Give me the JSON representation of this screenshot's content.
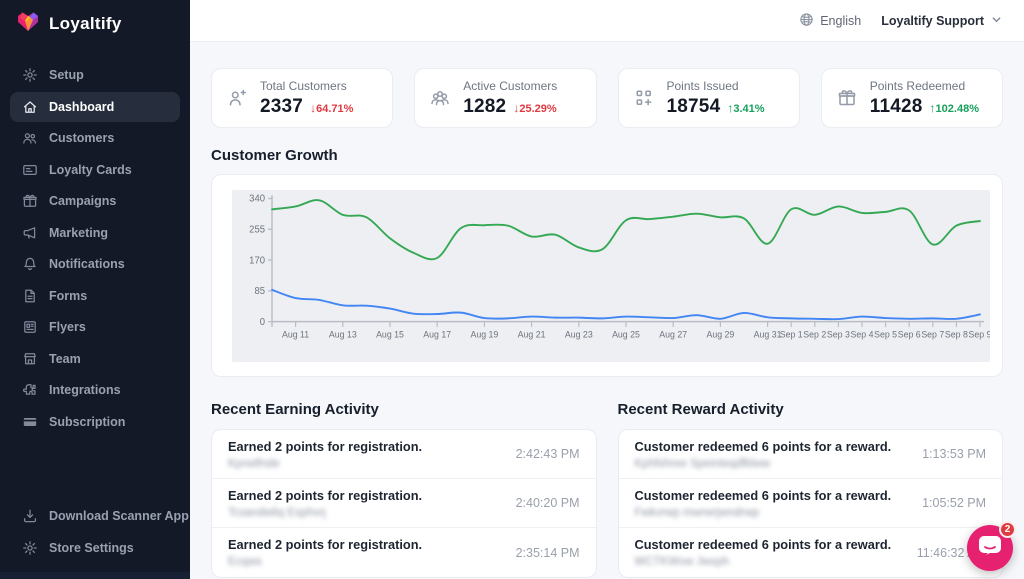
{
  "brand": {
    "name": "Loyaltify"
  },
  "topbar": {
    "language": "English",
    "account": "Loyaltify Support"
  },
  "sidebar": {
    "items": [
      {
        "label": "Setup",
        "icon": "gear",
        "active": false
      },
      {
        "label": "Dashboard",
        "icon": "home",
        "active": true
      },
      {
        "label": "Customers",
        "icon": "users",
        "active": false
      },
      {
        "label": "Loyalty Cards",
        "icon": "card",
        "active": false
      },
      {
        "label": "Campaigns",
        "icon": "gift",
        "active": false
      },
      {
        "label": "Marketing",
        "icon": "megaphone",
        "active": false
      },
      {
        "label": "Notifications",
        "icon": "bell",
        "active": false
      },
      {
        "label": "Forms",
        "icon": "document",
        "active": false
      },
      {
        "label": "Flyers",
        "icon": "flyer",
        "active": false
      },
      {
        "label": "Team",
        "icon": "storefront",
        "active": false
      },
      {
        "label": "Integrations",
        "icon": "puzzle",
        "active": false
      },
      {
        "label": "Subscription",
        "icon": "credit-card",
        "active": false
      }
    ],
    "footer_items": [
      {
        "label": "Download Scanner App",
        "icon": "download",
        "active": false
      },
      {
        "label": "Store Settings",
        "icon": "gear",
        "active": false
      }
    ]
  },
  "stats": [
    {
      "label": "Total Customers",
      "value": "2337",
      "change": "64.71%",
      "direction": "down",
      "icon": "person-plus"
    },
    {
      "label": "Active Customers",
      "value": "1282",
      "change": "25.29%",
      "direction": "down",
      "icon": "people"
    },
    {
      "label": "Points Issued",
      "value": "18754",
      "change": "3.41%",
      "direction": "up",
      "icon": "points-grid"
    },
    {
      "label": "Points Redeemed",
      "value": "11428",
      "change": "102.48%",
      "direction": "up",
      "icon": "gift"
    }
  ],
  "chart_section": {
    "title": "Customer Growth"
  },
  "chart_data": {
    "type": "line",
    "title": "Customer Growth",
    "grid": false,
    "legend": false,
    "ylim": [
      0,
      340
    ],
    "yticks": [
      0,
      85,
      170,
      255,
      340
    ],
    "x": [
      "Aug 10",
      "Aug 11",
      "Aug 12",
      "Aug 13",
      "Aug 14",
      "Aug 15",
      "Aug 16",
      "Aug 17",
      "Aug 18",
      "Aug 19",
      "Aug 20",
      "Aug 21",
      "Aug 22",
      "Aug 23",
      "Aug 24",
      "Aug 25",
      "Aug 26",
      "Aug 27",
      "Aug 28",
      "Aug 29",
      "Aug 30",
      "Aug 31",
      "Sep 1",
      "Sep 2",
      "Sep 3",
      "Sep 4",
      "Sep 5",
      "Sep 6",
      "Sep 7",
      "Sep 8",
      "Sep 9"
    ],
    "x_ticks": [
      {
        "label": "Aug 11",
        "i": 1
      },
      {
        "label": "Aug 13",
        "i": 3
      },
      {
        "label": "Aug 15",
        "i": 5
      },
      {
        "label": "Aug 17",
        "i": 7
      },
      {
        "label": "Aug 19",
        "i": 9
      },
      {
        "label": "Aug 21",
        "i": 11
      },
      {
        "label": "Aug 23",
        "i": 13
      },
      {
        "label": "Aug 25",
        "i": 15
      },
      {
        "label": "Aug 27",
        "i": 17
      },
      {
        "label": "Aug 29",
        "i": 19
      },
      {
        "label": "Aug 31",
        "i": 21
      },
      {
        "label": "Sep 1",
        "i": 22
      },
      {
        "label": "Sep 2",
        "i": 23
      },
      {
        "label": "Sep 3",
        "i": 24
      },
      {
        "label": "Sep 4",
        "i": 25
      },
      {
        "label": "Sep 5",
        "i": 26
      },
      {
        "label": "Sep 6",
        "i": 27
      },
      {
        "label": "Sep 7",
        "i": 28
      },
      {
        "label": "Sep 8",
        "i": 29
      },
      {
        "label": "Sep 9",
        "i": 30
      }
    ],
    "series": [
      {
        "name": "issued-green",
        "color": "#34a853",
        "values": [
          310,
          318,
          335,
          295,
          288,
          230,
          190,
          176,
          258,
          266,
          265,
          235,
          240,
          205,
          200,
          280,
          283,
          290,
          298,
          288,
          285,
          215,
          310,
          295,
          318,
          300,
          303,
          307,
          213,
          265,
          278
        ]
      },
      {
        "name": "redeemed-blue",
        "color": "#4285f4",
        "values": [
          88,
          65,
          60,
          45,
          44,
          36,
          22,
          21,
          25,
          10,
          9,
          14,
          11,
          11,
          9,
          14,
          12,
          10,
          18,
          8,
          24,
          12,
          9,
          8,
          7,
          14,
          10,
          8,
          9,
          8,
          20
        ]
      }
    ]
  },
  "earning": {
    "title": "Recent Earning Activity",
    "rows": [
      {
        "text": "Earned 2 points for registration.",
        "name_blurred": "Kprwtfnde",
        "time": "2:42:43 PM"
      },
      {
        "text": "Earned 2 points for registration.",
        "name_blurred": "Tcsandwliq Esphvrj",
        "time": "2:40:20 PM"
      },
      {
        "text": "Earned 2 points for registration.",
        "name_blurred": "Ecqws",
        "time": "2:35:14 PM"
      }
    ]
  },
  "reward": {
    "title": "Recent Reward Activity",
    "rows": [
      {
        "text": "Customer redeemed 6 points for a reward.",
        "name_blurred": "Kphfshree Speinteqdfklww",
        "time": "1:13:53 PM"
      },
      {
        "text": "Customer redeemed 6 points for a reward.",
        "name_blurred": "Fwkvrwp mwrwrjwndrwp",
        "time": "1:05:52 PM"
      },
      {
        "text": "Customer redeemed 6 points for a reward.",
        "name_blurred": "WCTKWvw Jwxph",
        "time": "11:46:32 AM"
      }
    ]
  },
  "chat": {
    "badge": "2"
  },
  "colors": {
    "sidebar_bg": "#141927",
    "sidebar_active_bg": "#262d3c",
    "accent_pink": "#e6216f",
    "negative": "#e03a40",
    "positive": "#16a05c",
    "line_green": "#34a853",
    "line_blue": "#4285f4",
    "plot_bg": "#edeff2",
    "content_bg": "#f5f7fa"
  }
}
